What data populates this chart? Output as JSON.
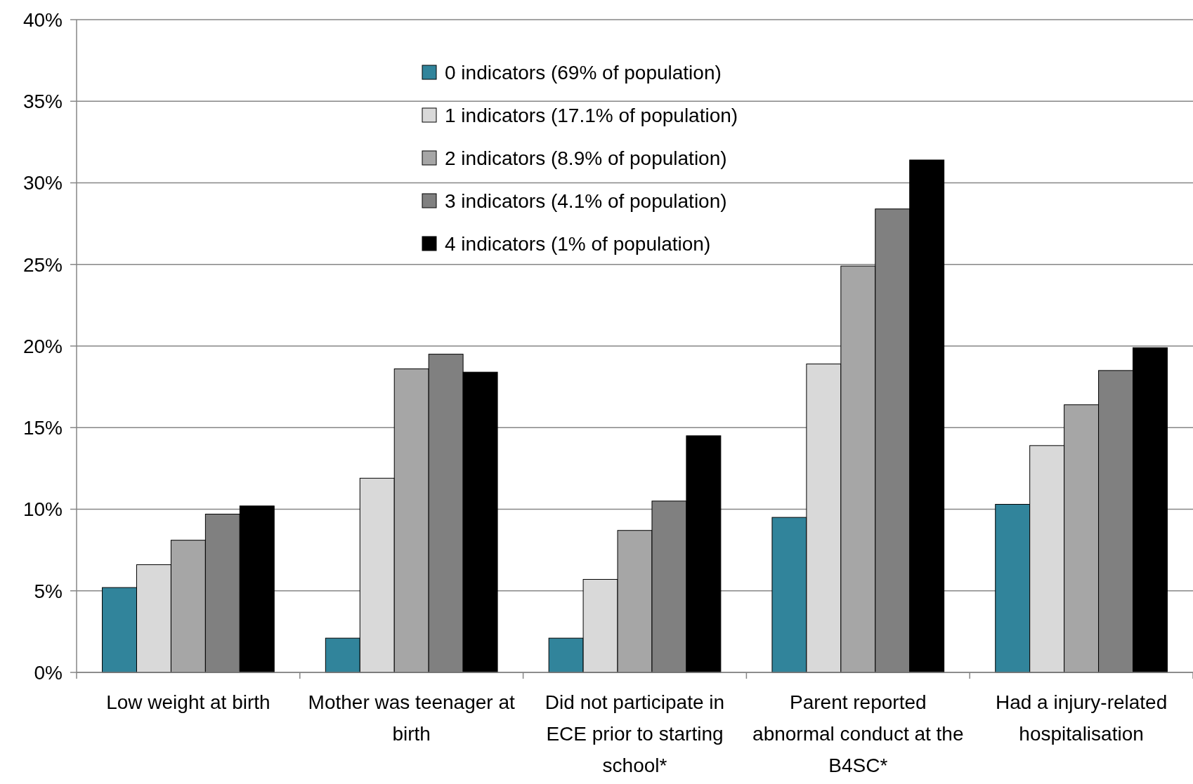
{
  "chart_data": {
    "type": "bar",
    "categories": [
      "Low weight at birth",
      "Mother was teenager at birth",
      "Did not participate in ECE prior to starting school*",
      "Parent reported abnormal conduct at the B4SC*",
      "Had a injury-related hospitalisation"
    ],
    "series": [
      {
        "name": "0 indicators (69% of population)",
        "color": "#31849b",
        "values": [
          5.2,
          2.1,
          2.1,
          9.5,
          10.3
        ]
      },
      {
        "name": "1 indicators (17.1% of population)",
        "color": "#d9d9d9",
        "values": [
          6.6,
          11.9,
          5.7,
          18.9,
          13.9
        ]
      },
      {
        "name": "2 indicators (8.9% of population)",
        "color": "#a6a6a6",
        "values": [
          8.1,
          18.6,
          8.7,
          24.9,
          16.4
        ]
      },
      {
        "name": "3 indicators (4.1% of population)",
        "color": "#808080",
        "values": [
          9.7,
          19.5,
          10.5,
          28.4,
          18.5
        ]
      },
      {
        "name": "4 indicators (1% of population)",
        "color": "#000000",
        "values": [
          10.2,
          18.4,
          14.5,
          31.4,
          19.9
        ]
      }
    ],
    "ylim": [
      0,
      40
    ],
    "yticks": [
      {
        "value": 0,
        "label": "0%"
      },
      {
        "value": 5,
        "label": "5%"
      },
      {
        "value": 10,
        "label": "10%"
      },
      {
        "value": 15,
        "label": "15%"
      },
      {
        "value": 20,
        "label": "20%"
      },
      {
        "value": 25,
        "label": "25%"
      },
      {
        "value": 30,
        "label": "30%"
      },
      {
        "value": 35,
        "label": "35%"
      },
      {
        "value": 40,
        "label": "40%"
      }
    ],
    "grid": "y",
    "legend": "top"
  }
}
